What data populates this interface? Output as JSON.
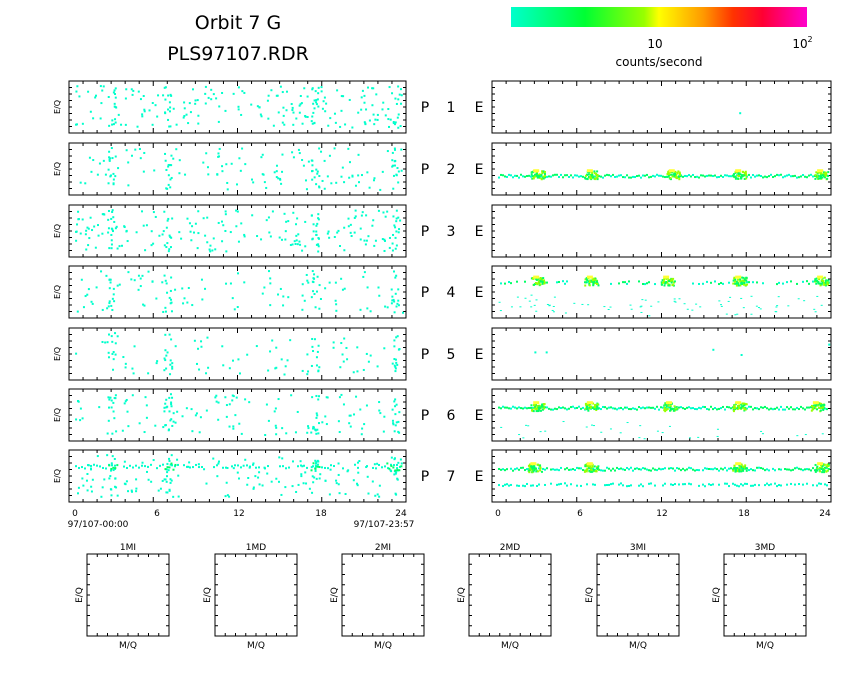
{
  "header": {
    "title": "Orbit 7 G",
    "filename": "PLS97107.RDR"
  },
  "colorbar": {
    "tick_10": "10",
    "tick_100_base": "10",
    "tick_100_exp": "2",
    "label": "counts/second",
    "colors": [
      "#00ffcc",
      "#00ff66",
      "#66ff00",
      "#ccff00",
      "#ffcc00",
      "#ff6600",
      "#ff0000",
      "#ff0066",
      "#ff00cc"
    ]
  },
  "left_ylabel": "E/Q",
  "rows": [
    {
      "p": "P",
      "n": "1",
      "e": "E"
    },
    {
      "p": "P",
      "n": "2",
      "e": "E"
    },
    {
      "p": "P",
      "n": "3",
      "e": "E"
    },
    {
      "p": "P",
      "n": "4",
      "e": "E"
    },
    {
      "p": "P",
      "n": "5",
      "e": "E"
    },
    {
      "p": "P",
      "n": "6",
      "e": "E"
    },
    {
      "p": "P",
      "n": "7",
      "e": "E"
    }
  ],
  "xaxis": {
    "ticks": [
      "0",
      "6",
      "12",
      "18",
      "24"
    ],
    "start_label": "97/107-00:00",
    "end_label": "97/107-23:57"
  },
  "small_panels": {
    "titles": [
      "1MI",
      "1MD",
      "2MI",
      "2MD",
      "3MI",
      "3MD"
    ],
    "ylabel": "E/Q",
    "xlabel": "M/Q"
  },
  "chart_data": {
    "type": "heatmap",
    "title": "Orbit 7 G",
    "subtitle": "PLS97107.RDR",
    "xlabel": "",
    "ylabel": "E/Q",
    "xlim": [
      0,
      24
    ],
    "x_ticks": [
      0,
      6,
      12,
      18,
      24
    ],
    "colorbar_label": "counts/second",
    "colorbar_ticks": [
      "10",
      "10^2"
    ],
    "panels": {
      "left": {
        "P1": {
          "scatter_density": 0.15,
          "hot_spans": []
        },
        "P2": {
          "scatter_density": 0.1,
          "hot_spans": []
        },
        "P3": {
          "scatter_density": 0.15,
          "hot_spans": []
        },
        "P4": {
          "scatter_density": 0.08,
          "hot_spans": []
        },
        "P5": {
          "scatter_density": 0.06,
          "hot_spans": []
        },
        "P6": {
          "scatter_density": 0.1,
          "hot_spans": []
        },
        "P7": {
          "scatter_density": 0.12,
          "band_rate": 0.7,
          "hot_spans": [
            [
              2.8,
              3.4
            ],
            [
              6.8,
              7.6
            ],
            [
              17.2,
              17.8
            ],
            [
              22.6,
              23.6
            ]
          ]
        }
      },
      "right": {
        "P1": {
          "scatter_density": 0.0,
          "points": [
            [
              17.5,
              0.6
            ]
          ]
        },
        "P2": {
          "band_level": 0.62,
          "band_rate": 1.0,
          "peaks": [
            [
              3.2,
              0.6
            ],
            [
              7.0,
              0.7
            ],
            [
              12.8,
              0.55
            ],
            [
              17.5,
              0.75
            ],
            [
              23.3,
              0.8
            ]
          ]
        },
        "P3": {
          "scatter_density": 0.0,
          "points": []
        },
        "P4": {
          "band_level": 0.3,
          "band_rate": 0.35,
          "low_scatter": 0.12,
          "peaks": [
            [
              3.2,
              0.6
            ],
            [
              7.0,
              0.6
            ],
            [
              12.4,
              0.5
            ],
            [
              17.5,
              0.6
            ],
            [
              23.3,
              0.6
            ]
          ]
        },
        "P5": {
          "scatter_density": 0.0,
          "points": [
            [
              3.0,
              0.45
            ],
            [
              3.8,
              0.45
            ],
            [
              15.6,
              0.4
            ],
            [
              17.6,
              0.5
            ],
            [
              23.8,
              0.3
            ]
          ]
        },
        "P6": {
          "band_level": 0.35,
          "band_rate": 1.0,
          "low_scatter": 0.05,
          "peaks": [
            [
              3.2,
              0.7
            ],
            [
              7.0,
              0.6
            ],
            [
              12.6,
              0.55
            ],
            [
              17.5,
              0.6
            ],
            [
              23.0,
              0.8
            ]
          ]
        },
        "P7": {
          "band_level": 0.35,
          "band_rate": 0.9,
          "band2_level": 0.65,
          "band2_rate": 0.6,
          "peaks": [
            [
              3.0,
              0.35
            ],
            [
              7.0,
              0.3
            ],
            [
              17.5,
              0.4
            ],
            [
              23.3,
              0.4
            ]
          ]
        }
      }
    }
  }
}
